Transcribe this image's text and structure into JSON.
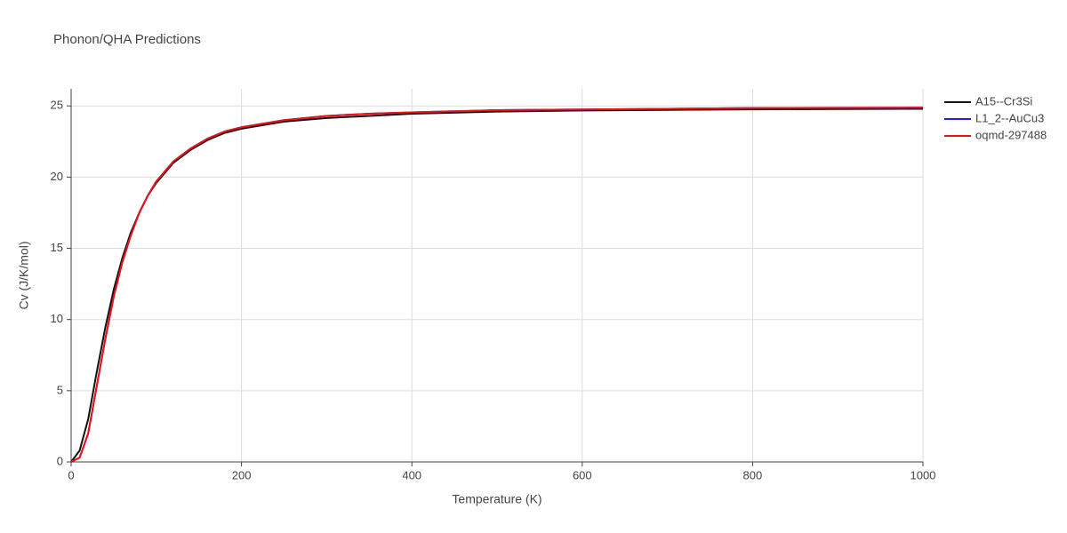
{
  "chart_data": {
    "type": "line",
    "title": "Phonon/QHA Predictions",
    "x_label": "Temperature (K)",
    "y_label": "Cv (J/K/mol)",
    "x": [
      0,
      10,
      20,
      30,
      40,
      50,
      60,
      70,
      80,
      90,
      100,
      120,
      140,
      160,
      180,
      200,
      250,
      300,
      350,
      400,
      500,
      600,
      700,
      800,
      900,
      1000
    ],
    "series": [
      {
        "name": "A15--Cr3Si",
        "color": "#111111",
        "values": [
          0,
          0.8,
          3.0,
          6.3,
          9.4,
          12.1,
          14.3,
          16.1,
          17.5,
          18.7,
          19.6,
          21.0,
          21.9,
          22.6,
          23.1,
          23.4,
          23.9,
          24.15,
          24.3,
          24.45,
          24.6,
          24.68,
          24.72,
          24.76,
          24.78,
          24.8
        ]
      },
      {
        "name": "L1_2--AuCu3",
        "color": "#1f1fdd",
        "values": [
          0,
          0.3,
          2.0,
          5.3,
          8.6,
          11.6,
          14.0,
          15.9,
          17.5,
          18.7,
          19.7,
          21.1,
          22.0,
          22.7,
          23.2,
          23.5,
          24.0,
          24.3,
          24.45,
          24.55,
          24.7,
          24.75,
          24.8,
          24.85,
          24.87,
          24.88
        ]
      },
      {
        "name": "oqmd-297488",
        "color": "#ee1111",
        "values": [
          0,
          0.3,
          2.0,
          5.3,
          8.6,
          11.6,
          14.0,
          15.9,
          17.5,
          18.7,
          19.7,
          21.1,
          22.0,
          22.7,
          23.2,
          23.5,
          24.0,
          24.3,
          24.45,
          24.55,
          24.7,
          24.75,
          24.8,
          24.85,
          24.87,
          24.88
        ]
      }
    ],
    "xlim": [
      0,
      1000
    ],
    "xticks": [
      0,
      200,
      400,
      600,
      800,
      1000
    ],
    "ylim": [
      0,
      26.2
    ],
    "yticks": [
      0,
      5,
      10,
      15,
      20,
      25
    ],
    "grid": true,
    "legend": "right"
  }
}
